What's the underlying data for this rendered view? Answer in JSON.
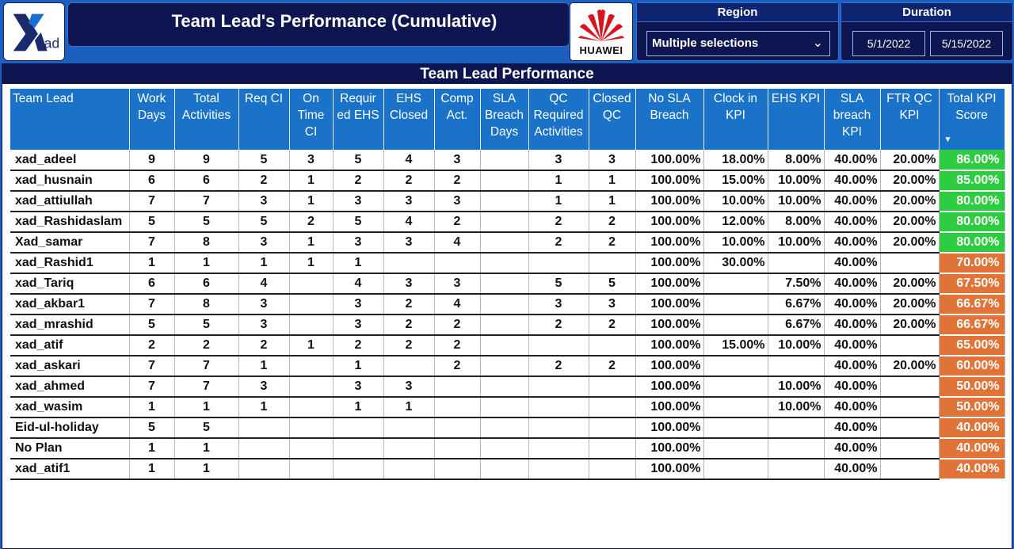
{
  "header": {
    "title": "Team Lead's Performance (Cumulative)",
    "logo_text": "Xad",
    "partner_logo_text": "HUAWEI"
  },
  "region": {
    "label": "Region",
    "value": "Multiple selections"
  },
  "duration": {
    "label": "Duration",
    "start": "5/1/2022",
    "end": "5/15/2022"
  },
  "panel": {
    "title": "Team Lead Performance"
  },
  "colors": {
    "high_score": "#2ecc40",
    "low_score": "#e07438",
    "header_blue": "#1a72c9",
    "navy": "#0e1652"
  },
  "table": {
    "columns": [
      "Team Lead",
      "Work Days",
      "Total Activities",
      "Req CI",
      "On Time CI",
      "Requir ed EHS",
      "EHS Closed",
      "Comp Act.",
      "SLA Breach Days",
      "QC Required Activities",
      "Closed QC",
      "No SLA Breach",
      "Clock in KPI",
      "EHS KPI",
      "SLA breach KPI",
      "FTR QC KPI",
      "Total KPI Score"
    ],
    "rows": [
      [
        "xad_adeel",
        "9",
        "9",
        "5",
        "3",
        "5",
        "4",
        "3",
        "",
        "3",
        "3",
        "100.00%",
        "18.00%",
        "8.00%",
        "40.00%",
        "20.00%",
        "86.00%",
        "high"
      ],
      [
        "xad_husnain",
        "6",
        "6",
        "2",
        "1",
        "2",
        "2",
        "2",
        "",
        "1",
        "1",
        "100.00%",
        "15.00%",
        "10.00%",
        "40.00%",
        "20.00%",
        "85.00%",
        "high"
      ],
      [
        "xad_attiullah",
        "7",
        "7",
        "3",
        "1",
        "3",
        "3",
        "3",
        "",
        "1",
        "1",
        "100.00%",
        "10.00%",
        "10.00%",
        "40.00%",
        "20.00%",
        "80.00%",
        "high"
      ],
      [
        "xad_Rashidaslam",
        "5",
        "5",
        "5",
        "2",
        "5",
        "4",
        "2",
        "",
        "2",
        "2",
        "100.00%",
        "12.00%",
        "8.00%",
        "40.00%",
        "20.00%",
        "80.00%",
        "high"
      ],
      [
        "Xad_samar",
        "7",
        "8",
        "3",
        "1",
        "3",
        "3",
        "4",
        "",
        "2",
        "2",
        "100.00%",
        "10.00%",
        "10.00%",
        "40.00%",
        "20.00%",
        "80.00%",
        "high"
      ],
      [
        "xad_Rashid1",
        "1",
        "1",
        "1",
        "1",
        "1",
        "",
        "",
        "",
        "",
        "",
        "100.00%",
        "30.00%",
        "",
        "40.00%",
        "",
        "70.00%",
        "low"
      ],
      [
        "xad_Tariq",
        "6",
        "6",
        "4",
        "",
        "4",
        "3",
        "3",
        "",
        "5",
        "5",
        "100.00%",
        "",
        "7.50%",
        "40.00%",
        "20.00%",
        "67.50%",
        "low"
      ],
      [
        "xad_akbar1",
        "7",
        "8",
        "3",
        "",
        "3",
        "2",
        "4",
        "",
        "3",
        "3",
        "100.00%",
        "",
        "6.67%",
        "40.00%",
        "20.00%",
        "66.67%",
        "low"
      ],
      [
        "xad_mrashid",
        "5",
        "5",
        "3",
        "",
        "3",
        "2",
        "2",
        "",
        "2",
        "2",
        "100.00%",
        "",
        "6.67%",
        "40.00%",
        "20.00%",
        "66.67%",
        "low"
      ],
      [
        "xad_atif",
        "2",
        "2",
        "2",
        "1",
        "2",
        "2",
        "2",
        "",
        "",
        "",
        "100.00%",
        "15.00%",
        "10.00%",
        "40.00%",
        "",
        "65.00%",
        "low"
      ],
      [
        "xad_askari",
        "7",
        "7",
        "1",
        "",
        "1",
        "",
        "2",
        "",
        "2",
        "2",
        "100.00%",
        "",
        "",
        "40.00%",
        "20.00%",
        "60.00%",
        "low"
      ],
      [
        "xad_ahmed",
        "7",
        "7",
        "3",
        "",
        "3",
        "3",
        "",
        "",
        "",
        "",
        "100.00%",
        "",
        "10.00%",
        "40.00%",
        "",
        "50.00%",
        "low"
      ],
      [
        "xad_wasim",
        "1",
        "1",
        "1",
        "",
        "1",
        "1",
        "",
        "",
        "",
        "",
        "100.00%",
        "",
        "10.00%",
        "40.00%",
        "",
        "50.00%",
        "low"
      ],
      [
        "Eid-ul-holiday",
        "5",
        "5",
        "",
        "",
        "",
        "",
        "",
        "",
        "",
        "",
        "100.00%",
        "",
        "",
        "40.00%",
        "",
        "40.00%",
        "low"
      ],
      [
        "No Plan",
        "1",
        "1",
        "",
        "",
        "",
        "",
        "",
        "",
        "",
        "",
        "100.00%",
        "",
        "",
        "40.00%",
        "",
        "40.00%",
        "low"
      ],
      [
        "xad_atif1",
        "1",
        "1",
        "",
        "",
        "",
        "",
        "",
        "",
        "",
        "",
        "100.00%",
        "",
        "",
        "40.00%",
        "",
        "40.00%",
        "low"
      ]
    ]
  }
}
